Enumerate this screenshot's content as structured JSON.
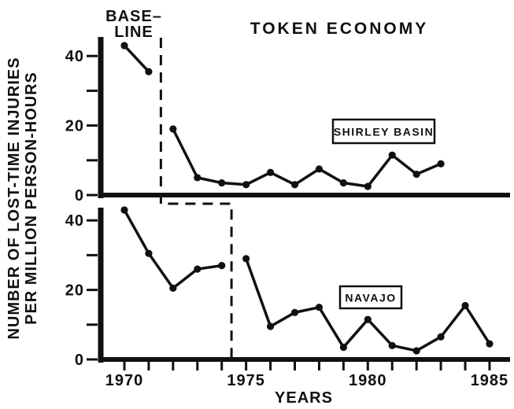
{
  "figure": {
    "baseline_label_line1": "BASE–",
    "baseline_label_line2": "LINE",
    "token_economy_label": "TOKEN ECONOMY",
    "ylabel_line1": "NUMBER OF LOST-TIME INJURIES",
    "ylabel_line2": "PER MILLION PERSON-HOURS",
    "xlabel": "YEARS",
    "ink_color": "#101010",
    "background_color": "#ffffff"
  },
  "chart_data": [
    {
      "type": "line",
      "panel": "top",
      "site": "SHIRLEY BASIN",
      "x_years": [
        1970,
        1971,
        1972,
        1973,
        1974,
        1975,
        1976,
        1977,
        1978,
        1979,
        1980,
        1981,
        1982,
        1983
      ],
      "values": [
        43,
        35.5,
        19,
        5,
        3.5,
        3,
        6.5,
        3,
        7.5,
        3.5,
        2.5,
        11.5,
        6,
        9
      ],
      "phase_change_year": 1971.5,
      "phases": {
        "before_change": "baseline",
        "after_change": "token economy"
      },
      "ylim": [
        0,
        44
      ],
      "yticks": [
        0,
        10,
        20,
        30,
        40
      ],
      "ytick_labels": {
        "0": "0",
        "20": "20",
        "40": "40"
      },
      "grid": "off",
      "marker": "filled-circle"
    },
    {
      "type": "line",
      "panel": "bottom",
      "site": "NAVAJO",
      "x_years": [
        1970,
        1971,
        1972,
        1973,
        1974,
        1975,
        1976,
        1977,
        1978,
        1979,
        1980,
        1981,
        1982,
        1983,
        1984,
        1985
      ],
      "values": [
        43,
        30.5,
        20.5,
        26,
        27,
        29,
        9.5,
        13.5,
        15,
        3.5,
        11.5,
        4,
        2.5,
        6.5,
        15.5,
        4.5
      ],
      "phase_change_year": 1974.4,
      "phases": {
        "before_change": "baseline",
        "after_change": "token economy"
      },
      "ylim": [
        0,
        44
      ],
      "yticks": [
        0,
        10,
        20,
        30,
        40
      ],
      "ytick_labels": {
        "0": "0",
        "20": "20",
        "40": "40"
      },
      "xticks": [
        1970,
        1971,
        1972,
        1973,
        1974,
        1975,
        1976,
        1977,
        1978,
        1979,
        1980,
        1981,
        1982,
        1983,
        1984,
        1985
      ],
      "xtick_labels": {
        "1970": "1970",
        "1975": "1975",
        "1980": "1980",
        "1985": "1985"
      },
      "grid": "off",
      "marker": "filled-circle"
    }
  ]
}
